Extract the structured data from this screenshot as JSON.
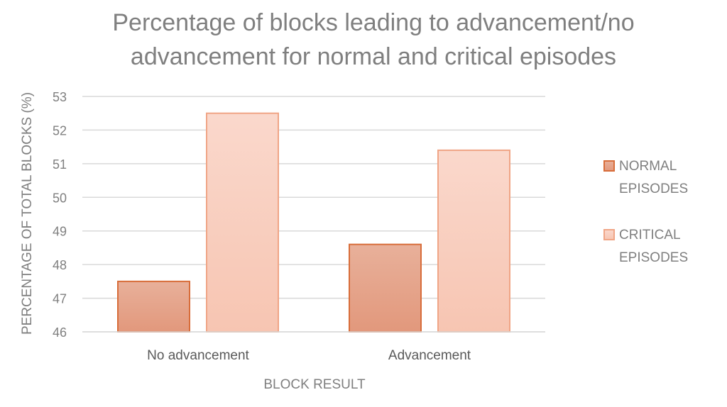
{
  "chart_data": {
    "type": "bar",
    "title": [
      "Percentage of blocks leading to advancement/no",
      "advancement for normal and critical episodes"
    ],
    "xlabel": "BLOCK RESULT",
    "ylabel": "PERCENTAGE OF TOTAL BLOCKS (%)",
    "categories": [
      "No advancement",
      "Advancement"
    ],
    "ylim": [
      46,
      53
    ],
    "yticks": [
      "46",
      "47",
      "48",
      "49",
      "50",
      "51",
      "52",
      "53"
    ],
    "grid": true,
    "legend_position": "right",
    "series": [
      {
        "name": [
          "NORMAL",
          "EPISODES"
        ],
        "values": [
          47.5,
          48.6
        ],
        "color_top": "#e8b09a",
        "color_bottom": "#e2987c",
        "stroke": "#d86d3a"
      },
      {
        "name": [
          "CRITICAL",
          "EPISODES"
        ],
        "values": [
          52.5,
          51.4
        ],
        "color_top": "#fad8cc",
        "color_bottom": "#f7c5b2",
        "stroke": "#f0a586"
      }
    ]
  }
}
